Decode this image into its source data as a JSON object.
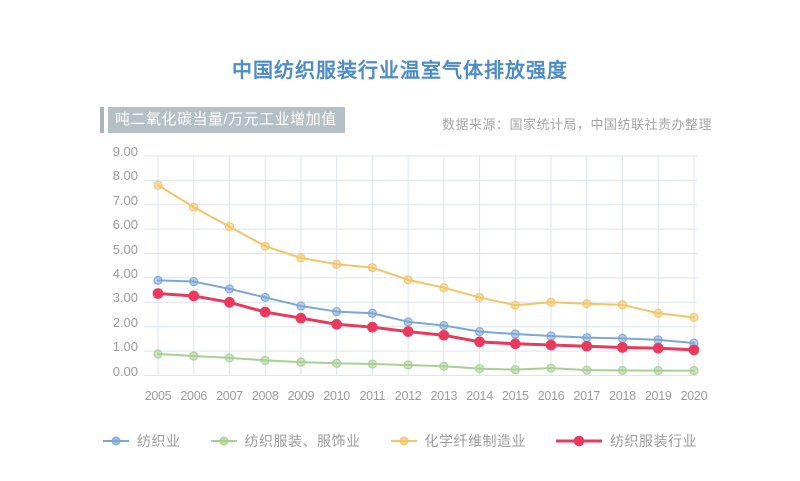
{
  "page": {
    "title": "中国纺织服装行业温室气体排放强度",
    "unit_label": "吨二氧化碳当量/万元工业增加值",
    "source": "数据来源：国家统计局，中国纺联社责办整理"
  },
  "colors": {
    "title": "#4d8cc4",
    "axis_text": "#9b9b9b",
    "legend_text": "#9b9b9b",
    "grid": "#dce5ee",
    "unit_badge_bg": "#b5bfc6",
    "unit_badge_bar": "#a9b6bd",
    "source_text": "#a6a6a6",
    "background": "#ffffff"
  },
  "chart_data": {
    "type": "line",
    "x": [
      "2005",
      "2006",
      "2007",
      "2008",
      "2009",
      "2010",
      "2011",
      "2012",
      "2013",
      "2014",
      "2015",
      "2016",
      "2017",
      "2018",
      "2019",
      "2020"
    ],
    "series": [
      {
        "name": "纺织业",
        "color": "#7ca7d5",
        "line_width": 2,
        "marker_radius": 4,
        "marker_solid": false,
        "values": [
          3.9,
          3.85,
          3.55,
          3.2,
          2.85,
          2.62,
          2.55,
          2.2,
          2.05,
          1.8,
          1.7,
          1.62,
          1.55,
          1.52,
          1.46,
          1.33
        ]
      },
      {
        "name": "纺织服装、服饰业",
        "color": "#a8cf94",
        "line_width": 2,
        "marker_radius": 4,
        "marker_solid": false,
        "values": [
          0.88,
          0.8,
          0.72,
          0.62,
          0.55,
          0.5,
          0.47,
          0.43,
          0.38,
          0.28,
          0.24,
          0.3,
          0.22,
          0.21,
          0.2,
          0.2
        ]
      },
      {
        "name": "化学纤维制造业",
        "color": "#f3c568",
        "line_width": 2,
        "marker_radius": 4,
        "marker_solid": false,
        "values": [
          7.8,
          6.9,
          6.1,
          5.3,
          4.82,
          4.56,
          4.42,
          3.92,
          3.6,
          3.2,
          2.88,
          3.0,
          2.94,
          2.9,
          2.55,
          2.38
        ]
      },
      {
        "name": "纺织服装行业",
        "color": "#e93a5e",
        "line_width": 3,
        "marker_radius": 4.8,
        "marker_solid": true,
        "values": [
          3.36,
          3.26,
          3.0,
          2.6,
          2.35,
          2.1,
          1.98,
          1.8,
          1.65,
          1.38,
          1.3,
          1.25,
          1.2,
          1.15,
          1.12,
          1.05
        ]
      }
    ],
    "title": "中国纺织服装行业温室气体排放强度",
    "ylabel": "吨二氧化碳当量/万元工业增加值",
    "ylim": [
      0,
      9
    ],
    "ytick_step": 1,
    "ytick_decimals": 2,
    "grid": true,
    "legend_position": "bottom"
  }
}
